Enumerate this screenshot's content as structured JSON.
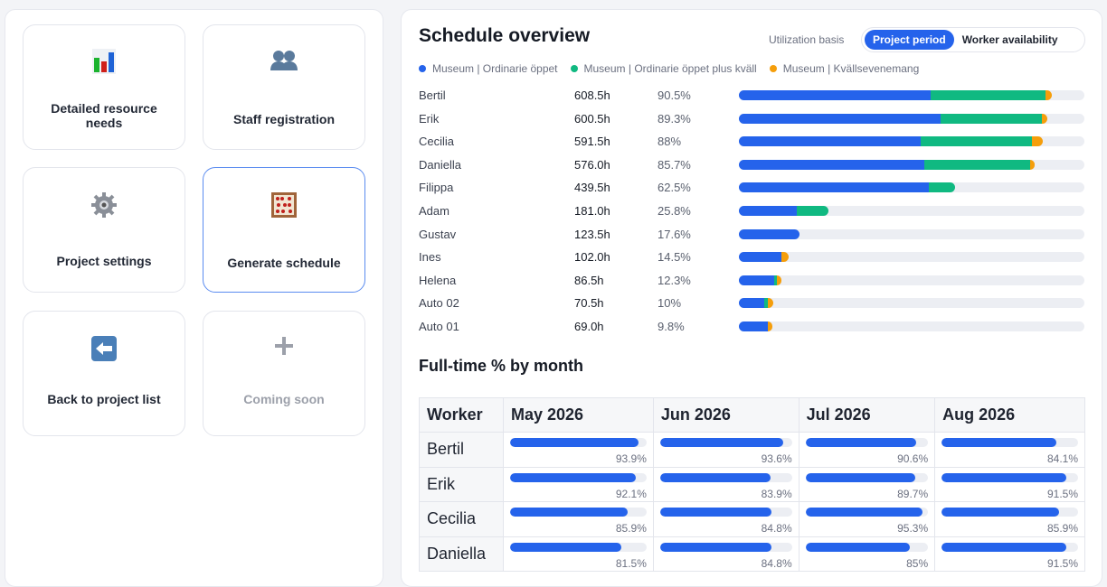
{
  "tiles": [
    {
      "label": "Detailed resource needs",
      "icon": "bar-chart-icon",
      "active": false,
      "disabled": false
    },
    {
      "label": "Staff registration",
      "icon": "users-icon",
      "active": false,
      "disabled": false
    },
    {
      "label": "Project settings",
      "icon": "gear-icon",
      "active": false,
      "disabled": false
    },
    {
      "label": "Generate schedule",
      "icon": "abacus-icon",
      "active": true,
      "disabled": false
    },
    {
      "label": "Back to project list",
      "icon": "back-arrow-icon",
      "active": false,
      "disabled": false
    },
    {
      "label": "Coming soon",
      "icon": "plus-icon",
      "active": false,
      "disabled": true
    }
  ],
  "overview": {
    "title": "Schedule overview",
    "basis_label": "Utilization basis",
    "toggle": {
      "options": [
        "Project period",
        "Worker availability"
      ],
      "selected": "Project period"
    },
    "legend": [
      {
        "label": "Museum | Ordinarie öppet",
        "color": "#2563eb"
      },
      {
        "label": "Museum | Ordinarie öppet plus kväll",
        "color": "#10b981"
      },
      {
        "label": "Museum | Kvällsevenemang",
        "color": "#f59e0b"
      }
    ],
    "rows": [
      {
        "name": "Bertil",
        "hours": "608.5h",
        "pct": "90.5%",
        "segments": [
          55.5,
          33.2,
          1.8
        ]
      },
      {
        "name": "Erik",
        "hours": "600.5h",
        "pct": "89.3%",
        "segments": [
          58.4,
          29.4,
          1.5
        ]
      },
      {
        "name": "Cecilia",
        "hours": "591.5h",
        "pct": "88%",
        "segments": [
          52.6,
          32.2,
          3.2
        ]
      },
      {
        "name": "Daniella",
        "hours": "576.0h",
        "pct": "85.7%",
        "segments": [
          53.7,
          30.5,
          1.5
        ]
      },
      {
        "name": "Filippa",
        "hours": "439.5h",
        "pct": "62.5%",
        "segments": [
          55.0,
          7.5,
          0
        ]
      },
      {
        "name": "Adam",
        "hours": "181.0h",
        "pct": "25.8%",
        "segments": [
          16.7,
          9.1,
          0
        ]
      },
      {
        "name": "Gustav",
        "hours": "123.5h",
        "pct": "17.6%",
        "segments": [
          17.6,
          0,
          0
        ]
      },
      {
        "name": "Ines",
        "hours": "102.0h",
        "pct": "14.5%",
        "segments": [
          12.3,
          0,
          2.2
        ]
      },
      {
        "name": "Helena",
        "hours": "86.5h",
        "pct": "12.3%",
        "segments": [
          10.2,
          0.8,
          1.3
        ]
      },
      {
        "name": "Auto 02",
        "hours": "70.5h",
        "pct": "10%",
        "segments": [
          7.3,
          1.2,
          1.5
        ]
      },
      {
        "name": "Auto 01",
        "hours": "69.0h",
        "pct": "9.8%",
        "segments": [
          8.4,
          0,
          1.4
        ]
      }
    ]
  },
  "fulltime": {
    "title": "Full-time % by month",
    "columns": [
      "Worker",
      "May 2026",
      "Jun 2026",
      "Jul 2026",
      "Aug 2026"
    ],
    "rows": [
      {
        "name": "Bertil",
        "values": [
          "93.9%",
          "93.6%",
          "90.6%",
          "84.1%"
        ]
      },
      {
        "name": "Erik",
        "values": [
          "92.1%",
          "83.9%",
          "89.7%",
          "91.5%"
        ]
      },
      {
        "name": "Cecilia",
        "values": [
          "85.9%",
          "84.8%",
          "95.3%",
          "85.9%"
        ]
      },
      {
        "name": "Daniella",
        "values": [
          "81.5%",
          "84.8%",
          "85%",
          "91.5%"
        ]
      }
    ]
  }
}
